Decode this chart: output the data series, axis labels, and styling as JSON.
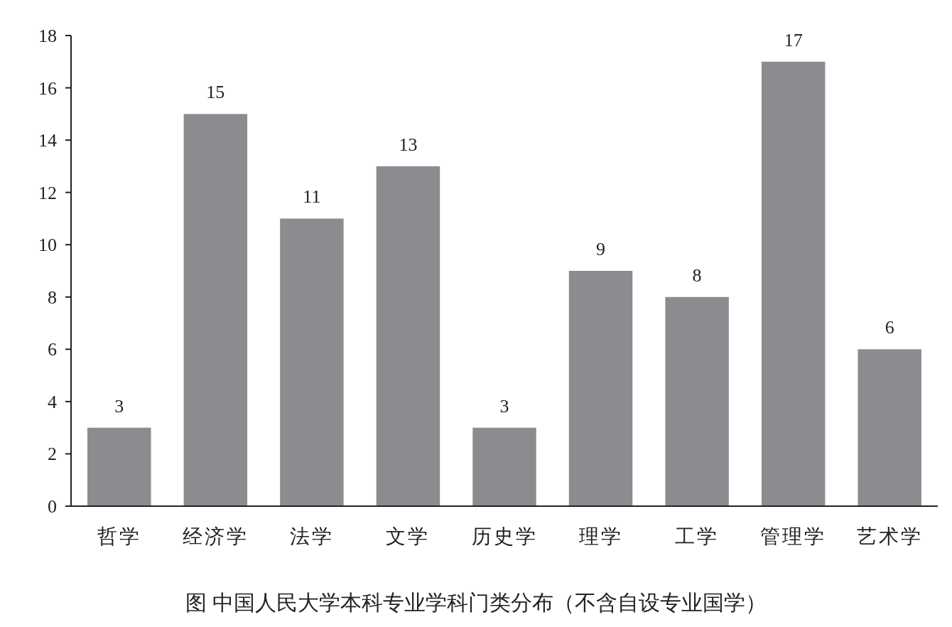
{
  "chart_data": {
    "type": "bar",
    "title": "图 中国人民大学本科专业学科门类分布（不含自设专业国学）",
    "categories": [
      "哲学",
      "经济学",
      "法学",
      "文学",
      "历史学",
      "理学",
      "工学",
      "管理学",
      "艺术学"
    ],
    "values": [
      3,
      15,
      11,
      13,
      3,
      9,
      8,
      17,
      6
    ],
    "color": "#8c8c90",
    "ylim": [
      0,
      18
    ],
    "yticks": [
      0,
      2,
      4,
      6,
      8,
      10,
      12,
      14,
      16,
      18
    ],
    "data_labels": true
  }
}
